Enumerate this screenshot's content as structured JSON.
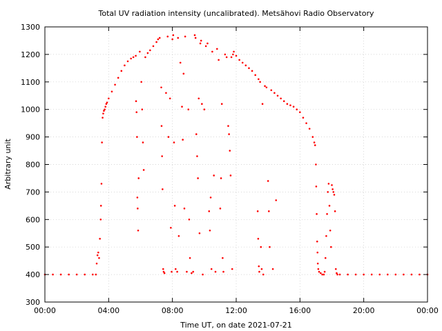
{
  "chart_data": {
    "type": "scatter",
    "title": "Total UV radiation intensity (uncalibrated). Metsähovi Radio Observatory",
    "xlabel": "Time UT, on date 2021-07-21",
    "ylabel": "Arbitrary unit",
    "xlim": [
      0,
      24
    ],
    "ylim": [
      300,
      1300
    ],
    "x_ticks": [
      0,
      4,
      8,
      12,
      16,
      20,
      24
    ],
    "x_tick_labels": [
      "00:00",
      "04:00",
      "08:00",
      "12:00",
      "16:00",
      "20:00",
      "00:00"
    ],
    "y_ticks": [
      300,
      400,
      500,
      600,
      700,
      800,
      900,
      1000,
      1100,
      1200,
      1300
    ],
    "grid": true,
    "legend": "none",
    "color": "#ff0000",
    "series": [
      {
        "x_unit": "hours UT",
        "values": [
          [
            0.0,
            400
          ],
          [
            0.5,
            400
          ],
          [
            1.0,
            400
          ],
          [
            1.5,
            400
          ],
          [
            2.0,
            400
          ],
          [
            2.5,
            400
          ],
          [
            3.0,
            400
          ],
          [
            3.2,
            400
          ],
          [
            3.25,
            440
          ],
          [
            3.3,
            470
          ],
          [
            3.35,
            480
          ],
          [
            3.4,
            460
          ],
          [
            3.45,
            530
          ],
          [
            3.5,
            600
          ],
          [
            3.52,
            650
          ],
          [
            3.55,
            730
          ],
          [
            3.58,
            880
          ],
          [
            3.62,
            970
          ],
          [
            3.66,
            985
          ],
          [
            3.7,
            995
          ],
          [
            3.75,
            1000
          ],
          [
            3.8,
            1010
          ],
          [
            3.85,
            1020
          ],
          [
            3.9,
            1025
          ],
          [
            4.0,
            1040
          ],
          [
            4.2,
            1065
          ],
          [
            4.4,
            1090
          ],
          [
            4.6,
            1115
          ],
          [
            4.8,
            1140
          ],
          [
            5.0,
            1160
          ],
          [
            5.2,
            1175
          ],
          [
            5.4,
            1185
          ],
          [
            5.55,
            1190
          ],
          [
            5.7,
            1195
          ],
          [
            5.72,
            1030
          ],
          [
            5.75,
            990
          ],
          [
            5.78,
            900
          ],
          [
            5.8,
            680
          ],
          [
            5.82,
            640
          ],
          [
            5.85,
            560
          ],
          [
            5.88,
            750
          ],
          [
            5.95,
            1210
          ],
          [
            6.05,
            1100
          ],
          [
            6.1,
            1000
          ],
          [
            6.15,
            880
          ],
          [
            6.2,
            780
          ],
          [
            6.3,
            1190
          ],
          [
            6.45,
            1205
          ],
          [
            6.6,
            1215
          ],
          [
            6.8,
            1230
          ],
          [
            7.0,
            1245
          ],
          [
            7.1,
            1255
          ],
          [
            7.2,
            1260
          ],
          [
            7.3,
            1080
          ],
          [
            7.32,
            940
          ],
          [
            7.35,
            830
          ],
          [
            7.38,
            710
          ],
          [
            7.42,
            420
          ],
          [
            7.45,
            410
          ],
          [
            7.5,
            405
          ],
          [
            7.6,
            1060
          ],
          [
            7.7,
            1265
          ],
          [
            7.75,
            900
          ],
          [
            7.85,
            1040
          ],
          [
            7.9,
            570
          ],
          [
            7.95,
            410
          ],
          [
            8.0,
            1255
          ],
          [
            8.05,
            1270
          ],
          [
            8.1,
            880
          ],
          [
            8.15,
            650
          ],
          [
            8.2,
            420
          ],
          [
            8.3,
            410
          ],
          [
            8.35,
            1260
          ],
          [
            8.4,
            540
          ],
          [
            8.5,
            1170
          ],
          [
            8.6,
            1010
          ],
          [
            8.65,
            890
          ],
          [
            8.7,
            1130
          ],
          [
            8.75,
            640
          ],
          [
            8.8,
            1265
          ],
          [
            8.9,
            410
          ],
          [
            9.0,
            1000
          ],
          [
            9.05,
            600
          ],
          [
            9.1,
            460
          ],
          [
            9.2,
            405
          ],
          [
            9.3,
            410
          ],
          [
            9.4,
            1270
          ],
          [
            9.45,
            1260
          ],
          [
            9.5,
            910
          ],
          [
            9.55,
            830
          ],
          [
            9.6,
            750
          ],
          [
            9.65,
            1040
          ],
          [
            9.7,
            550
          ],
          [
            9.75,
            1240
          ],
          [
            9.8,
            1250
          ],
          [
            9.85,
            1020
          ],
          [
            9.9,
            400
          ],
          [
            10.0,
            1000
          ],
          [
            10.1,
            1230
          ],
          [
            10.2,
            1240
          ],
          [
            10.3,
            630
          ],
          [
            10.35,
            560
          ],
          [
            10.4,
            680
          ],
          [
            10.45,
            420
          ],
          [
            10.5,
            1210
          ],
          [
            10.6,
            760
          ],
          [
            10.7,
            410
          ],
          [
            10.8,
            1220
          ],
          [
            10.9,
            1180
          ],
          [
            11.0,
            640
          ],
          [
            11.05,
            750
          ],
          [
            11.1,
            1020
          ],
          [
            11.15,
            460
          ],
          [
            11.2,
            410
          ],
          [
            11.3,
            1200
          ],
          [
            11.4,
            1190
          ],
          [
            11.5,
            940
          ],
          [
            11.55,
            910
          ],
          [
            11.6,
            850
          ],
          [
            11.65,
            760
          ],
          [
            11.7,
            1190
          ],
          [
            11.75,
            420
          ],
          [
            11.8,
            1200
          ],
          [
            11.85,
            1210
          ],
          [
            12.0,
            1195
          ],
          [
            12.2,
            1180
          ],
          [
            12.4,
            1170
          ],
          [
            12.6,
            1160
          ],
          [
            12.8,
            1150
          ],
          [
            13.0,
            1140
          ],
          [
            13.2,
            1125
          ],
          [
            13.4,
            1110
          ],
          [
            13.35,
            630
          ],
          [
            13.38,
            530
          ],
          [
            13.42,
            430
          ],
          [
            13.45,
            410
          ],
          [
            13.5,
            1100
          ],
          [
            13.55,
            500
          ],
          [
            13.6,
            420
          ],
          [
            13.65,
            1020
          ],
          [
            13.7,
            400
          ],
          [
            13.8,
            1085
          ],
          [
            13.9,
            1080
          ],
          [
            14.0,
            740
          ],
          [
            14.05,
            630
          ],
          [
            14.1,
            500
          ],
          [
            14.2,
            1070
          ],
          [
            14.3,
            420
          ],
          [
            14.4,
            1060
          ],
          [
            14.5,
            670
          ],
          [
            14.6,
            1050
          ],
          [
            14.8,
            1040
          ],
          [
            15.0,
            1030
          ],
          [
            15.2,
            1020
          ],
          [
            15.4,
            1015
          ],
          [
            15.6,
            1010
          ],
          [
            15.8,
            1000
          ],
          [
            16.0,
            990
          ],
          [
            16.2,
            970
          ],
          [
            16.4,
            950
          ],
          [
            16.6,
            930
          ],
          [
            16.8,
            900
          ],
          [
            16.9,
            880
          ],
          [
            16.95,
            870
          ],
          [
            17.0,
            800
          ],
          [
            17.02,
            720
          ],
          [
            17.05,
            620
          ],
          [
            17.08,
            520
          ],
          [
            17.1,
            480
          ],
          [
            17.12,
            440
          ],
          [
            17.15,
            420
          ],
          [
            17.2,
            410
          ],
          [
            17.3,
            405
          ],
          [
            17.4,
            400
          ],
          [
            17.5,
            400
          ],
          [
            17.55,
            410
          ],
          [
            17.6,
            460
          ],
          [
            17.65,
            540
          ],
          [
            17.7,
            620
          ],
          [
            17.75,
            700
          ],
          [
            17.8,
            730
          ],
          [
            17.85,
            650
          ],
          [
            17.9,
            560
          ],
          [
            17.95,
            500
          ],
          [
            18.0,
            725
          ],
          [
            18.05,
            710
          ],
          [
            18.1,
            700
          ],
          [
            18.15,
            690
          ],
          [
            18.2,
            630
          ],
          [
            18.25,
            420
          ],
          [
            18.3,
            405
          ],
          [
            18.35,
            400
          ],
          [
            18.5,
            400
          ],
          [
            19.0,
            400
          ],
          [
            19.5,
            400
          ],
          [
            20.0,
            400
          ],
          [
            20.5,
            400
          ],
          [
            21.0,
            400
          ],
          [
            21.5,
            400
          ],
          [
            22.0,
            400
          ],
          [
            22.5,
            400
          ],
          [
            23.0,
            400
          ],
          [
            23.5,
            400
          ],
          [
            24.0,
            400
          ]
        ]
      }
    ]
  }
}
